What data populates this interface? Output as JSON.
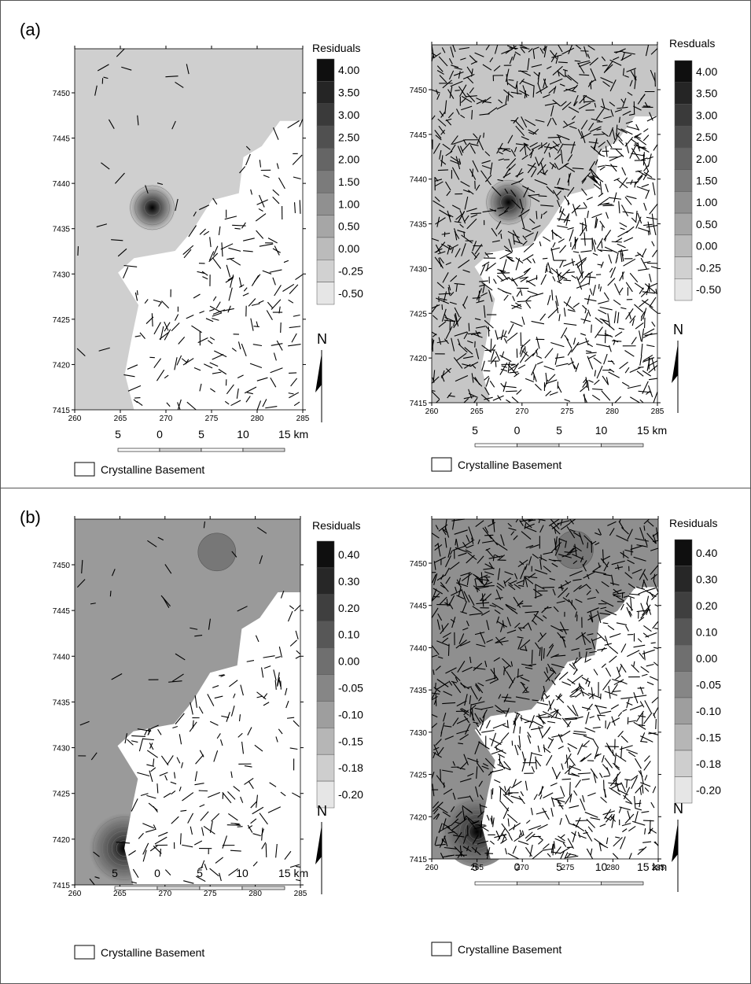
{
  "panels": [
    {
      "label": "(a)",
      "maps": [
        {
          "x_ticks": [
            260,
            265,
            270,
            275,
            280,
            285
          ],
          "y_ticks": [
            7415,
            7420,
            7425,
            7430,
            7435,
            7440,
            7445,
            7450
          ],
          "legend_title": "Residuals",
          "legend_labels": [
            "4.00",
            "3.50",
            "3.00",
            "2.50",
            "2.00",
            "1.50",
            "1.00",
            "0.50",
            "0.00",
            "-0.25",
            "-0.50"
          ],
          "scale_labels": [
            "5",
            "0",
            "5",
            "10",
            "15 km"
          ],
          "north": "N",
          "basement_label": "Crystalline Basement"
        },
        {
          "x_ticks": [
            260,
            265,
            270,
            275,
            280,
            285
          ],
          "y_ticks": [
            7415,
            7420,
            7425,
            7430,
            7435,
            7440,
            7445,
            7450
          ],
          "legend_title": "Resduals",
          "legend_labels": [
            "4.00",
            "3.50",
            "3.00",
            "2.50",
            "2.00",
            "1.50",
            "1.00",
            "0.50",
            "0.00",
            "-0.25",
            "-0.50"
          ],
          "scale_labels": [
            "5",
            "0",
            "5",
            "10",
            "15 km"
          ],
          "north": "N",
          "basement_label": "Crystalline Basement"
        }
      ]
    },
    {
      "label": "(b)",
      "maps": [
        {
          "x_ticks": [
            260,
            265,
            270,
            275,
            280,
            285
          ],
          "y_ticks": [
            7415,
            7420,
            7425,
            7430,
            7435,
            7440,
            7445,
            7450
          ],
          "legend_title": "Residuals",
          "legend_labels": [
            "0.40",
            "0.30",
            "0.20",
            "0.10",
            "0.00",
            "-0.05",
            "-0.10",
            "-0.15",
            "-0.18",
            "-0.20"
          ],
          "scale_labels": [
            "5",
            "0",
            "5",
            "10",
            "15 km"
          ],
          "north": "N",
          "basement_label": "Crystalline Basement"
        },
        {
          "x_ticks": [
            260,
            265,
            270,
            275,
            280,
            285
          ],
          "y_ticks": [
            7415,
            7420,
            7425,
            7430,
            7435,
            7440,
            7445,
            7450
          ],
          "legend_title": "Residuals",
          "legend_labels": [
            "0.40",
            "0.30",
            "0.20",
            "0.10",
            "0.00",
            "-0.05",
            "-0.10",
            "-0.15",
            "-0.18",
            "-0.20"
          ],
          "scale_labels": [
            "5",
            "0",
            "5",
            "10",
            "15 km"
          ],
          "north": "N",
          "basement_label": "Crystalline Basement"
        }
      ]
    }
  ]
}
